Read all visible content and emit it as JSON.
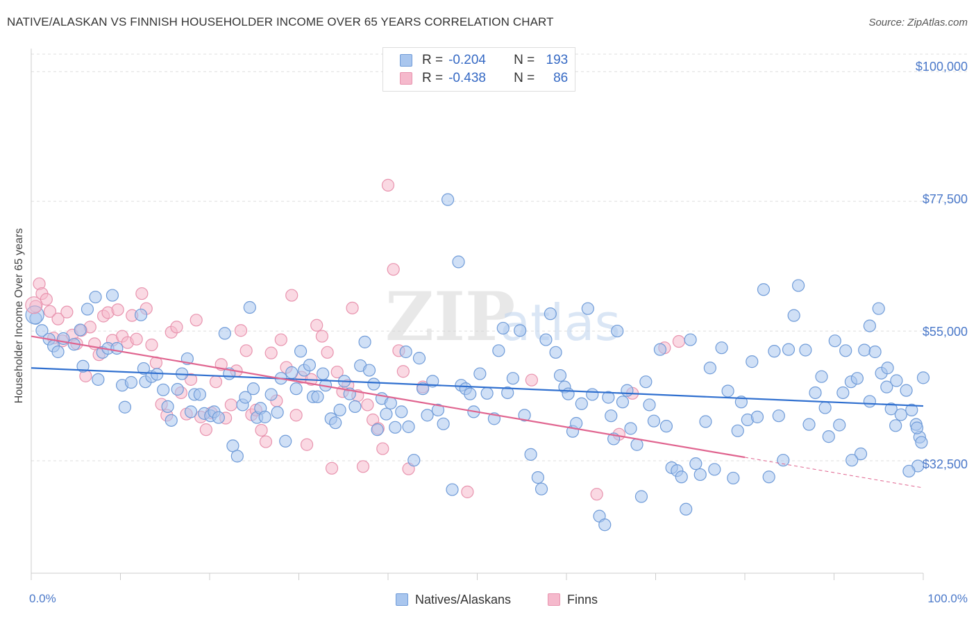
{
  "title": "NATIVE/ALASKAN VS FINNISH HOUSEHOLDER INCOME OVER 65 YEARS CORRELATION CHART",
  "source": "Source: ZipAtlas.com",
  "watermark": {
    "zip": "ZIP",
    "atlas": "atlas"
  },
  "colors": {
    "natives_fill": "#a9c6ee",
    "natives_stroke": "#6f9bd8",
    "natives_line": "#2f6fcf",
    "finns_fill": "#f5b9cc",
    "finns_stroke": "#e893ae",
    "finns_line": "#e0648f",
    "tick_text": "#4a78c9",
    "grid": "#dddddd"
  },
  "legend": {
    "rows": [
      {
        "r_label": "R =",
        "r_value": "-0.204",
        "n_label": "N =",
        "n_value": "193"
      },
      {
        "r_label": "R =",
        "r_value": "-0.438",
        "n_label": "N =",
        "n_value": "86"
      }
    ]
  },
  "bottom_legend": {
    "natives": "Natives/Alaskans",
    "finns": "Finns"
  },
  "chart_data": {
    "type": "scatter",
    "title": "NATIVE/ALASKAN VS FINNISH HOUSEHOLDER INCOME OVER 65 YEARS CORRELATION CHART",
    "xlabel": "",
    "ylabel": "Householder Income Over 65 years",
    "xlim": [
      0,
      100
    ],
    "ylim": [
      13000,
      104000
    ],
    "x_tick_labels": [
      "0.0%",
      "100.0%"
    ],
    "y_ticks": [
      32500,
      55000,
      77500,
      100000
    ],
    "y_tick_labels": [
      "$32,500",
      "$55,000",
      "$77,500",
      "$100,000"
    ],
    "legend_position": "top-center",
    "grid": true,
    "series": [
      {
        "name": "Natives/Alaskans",
        "r": -0.204,
        "n": 193,
        "trend": {
          "x": [
            0,
            100
          ],
          "y": [
            48600,
            42000
          ]
        },
        "points": [
          [
            0.5,
            57200
          ],
          [
            1.2,
            55100
          ],
          [
            2.0,
            53600
          ],
          [
            2.5,
            52400
          ],
          [
            3.0,
            51400
          ],
          [
            3.6,
            53700
          ],
          [
            4.8,
            52700
          ],
          [
            5.5,
            55200
          ],
          [
            5.8,
            48900
          ],
          [
            6.3,
            58800
          ],
          [
            7.2,
            60900
          ],
          [
            7.5,
            46600
          ],
          [
            8.0,
            51300
          ],
          [
            8.6,
            52000
          ],
          [
            9.1,
            61200
          ],
          [
            9.6,
            52000
          ],
          [
            10.2,
            45600
          ],
          [
            10.5,
            41800
          ],
          [
            11.2,
            46100
          ],
          [
            12.3,
            57800
          ],
          [
            12.6,
            48500
          ],
          [
            12.8,
            46200
          ],
          [
            13.5,
            47100
          ],
          [
            14.1,
            47500
          ],
          [
            14.8,
            44800
          ],
          [
            15.3,
            41900
          ],
          [
            15.7,
            39500
          ],
          [
            16.4,
            44900
          ],
          [
            16.9,
            47600
          ],
          [
            17.5,
            50200
          ],
          [
            17.9,
            41000
          ],
          [
            18.3,
            44000
          ],
          [
            18.9,
            44000
          ],
          [
            19.4,
            40700
          ],
          [
            20.1,
            40300
          ],
          [
            20.5,
            41000
          ],
          [
            21.0,
            40000
          ],
          [
            21.7,
            54600
          ],
          [
            22.2,
            47600
          ],
          [
            22.6,
            35100
          ],
          [
            23.1,
            33300
          ],
          [
            23.7,
            42200
          ],
          [
            24.0,
            43500
          ],
          [
            24.5,
            59100
          ],
          [
            24.9,
            45000
          ],
          [
            25.3,
            40000
          ],
          [
            25.7,
            41600
          ],
          [
            26.2,
            40100
          ],
          [
            26.9,
            44000
          ],
          [
            27.6,
            40900
          ],
          [
            28.0,
            46800
          ],
          [
            28.5,
            35900
          ],
          [
            29.2,
            47800
          ],
          [
            29.7,
            45000
          ],
          [
            30.2,
            51500
          ],
          [
            30.6,
            48200
          ],
          [
            31.2,
            49100
          ],
          [
            31.6,
            43600
          ],
          [
            32.1,
            43600
          ],
          [
            32.7,
            47600
          ],
          [
            33.0,
            45600
          ],
          [
            33.6,
            39800
          ],
          [
            34.1,
            39100
          ],
          [
            34.6,
            41300
          ],
          [
            35.1,
            46300
          ],
          [
            35.7,
            44100
          ],
          [
            36.3,
            41900
          ],
          [
            36.9,
            49000
          ],
          [
            37.4,
            53100
          ],
          [
            37.9,
            48200
          ],
          [
            38.4,
            45800
          ],
          [
            38.8,
            37900
          ],
          [
            39.3,
            43300
          ],
          [
            39.8,
            40600
          ],
          [
            40.3,
            42500
          ],
          [
            40.8,
            38300
          ],
          [
            41.5,
            41000
          ],
          [
            42.0,
            51400
          ],
          [
            42.3,
            38400
          ],
          [
            42.9,
            32600
          ],
          [
            43.5,
            50300
          ],
          [
            43.9,
            45000
          ],
          [
            44.4,
            40400
          ],
          [
            45.0,
            46300
          ],
          [
            45.6,
            41300
          ],
          [
            46.2,
            38900
          ],
          [
            46.7,
            77800
          ],
          [
            47.2,
            27500
          ],
          [
            47.9,
            67000
          ],
          [
            48.2,
            45600
          ],
          [
            48.7,
            45000
          ],
          [
            49.2,
            44100
          ],
          [
            49.6,
            41000
          ],
          [
            50.3,
            47600
          ],
          [
            51.1,
            44200
          ],
          [
            51.9,
            39800
          ],
          [
            52.4,
            51600
          ],
          [
            52.9,
            55500
          ],
          [
            53.4,
            44300
          ],
          [
            54.0,
            46800
          ],
          [
            54.8,
            55100
          ],
          [
            55.3,
            40400
          ],
          [
            56.0,
            33600
          ],
          [
            56.8,
            29600
          ],
          [
            57.2,
            27600
          ],
          [
            57.7,
            53500
          ],
          [
            58.2,
            58000
          ],
          [
            58.8,
            51300
          ],
          [
            59.3,
            47300
          ],
          [
            59.8,
            45300
          ],
          [
            60.2,
            44100
          ],
          [
            60.7,
            37600
          ],
          [
            61.1,
            39000
          ],
          [
            61.7,
            42400
          ],
          [
            62.4,
            58900
          ],
          [
            62.9,
            44000
          ],
          [
            63.7,
            22900
          ],
          [
            64.3,
            21400
          ],
          [
            64.7,
            43500
          ],
          [
            65.0,
            40300
          ],
          [
            65.3,
            36300
          ],
          [
            65.7,
            55000
          ],
          [
            66.3,
            42700
          ],
          [
            66.8,
            44700
          ],
          [
            67.2,
            38100
          ],
          [
            67.9,
            35300
          ],
          [
            68.4,
            26300
          ],
          [
            68.9,
            46200
          ],
          [
            69.3,
            42200
          ],
          [
            69.8,
            39400
          ],
          [
            70.5,
            51800
          ],
          [
            71.2,
            38500
          ],
          [
            71.8,
            31300
          ],
          [
            72.4,
            30800
          ],
          [
            72.9,
            29700
          ],
          [
            73.4,
            24100
          ],
          [
            73.9,
            53500
          ],
          [
            74.5,
            32000
          ],
          [
            75.0,
            30100
          ],
          [
            75.6,
            39300
          ],
          [
            76.1,
            48600
          ],
          [
            76.6,
            31000
          ],
          [
            77.4,
            52100
          ],
          [
            78.1,
            44600
          ],
          [
            78.7,
            29500
          ],
          [
            79.2,
            37700
          ],
          [
            79.6,
            42700
          ],
          [
            80.3,
            39600
          ],
          [
            80.8,
            49700
          ],
          [
            81.4,
            40100
          ],
          [
            82.1,
            62200
          ],
          [
            82.7,
            29700
          ],
          [
            83.3,
            51500
          ],
          [
            83.8,
            40300
          ],
          [
            84.3,
            32600
          ],
          [
            84.9,
            51800
          ],
          [
            85.5,
            57700
          ],
          [
            86.0,
            62900
          ],
          [
            86.8,
            51700
          ],
          [
            87.2,
            38800
          ],
          [
            87.9,
            44300
          ],
          [
            88.6,
            47100
          ],
          [
            89.0,
            41700
          ],
          [
            89.4,
            36700
          ],
          [
            90.1,
            53300
          ],
          [
            90.6,
            38700
          ],
          [
            91.3,
            51600
          ],
          [
            91.9,
            46200
          ],
          [
            92.6,
            46800
          ],
          [
            93.4,
            51700
          ],
          [
            94.0,
            55900
          ],
          [
            94.6,
            51400
          ],
          [
            95.3,
            47700
          ],
          [
            95.9,
            45300
          ],
          [
            96.4,
            41500
          ],
          [
            96.9,
            38600
          ],
          [
            97.5,
            40500
          ],
          [
            98.1,
            44700
          ],
          [
            98.7,
            41300
          ],
          [
            99.2,
            38800
          ],
          [
            99.4,
            31600
          ],
          [
            99.6,
            36600
          ],
          [
            99.8,
            35700
          ],
          [
            100.0,
            46900
          ],
          [
            99.3,
            38200
          ],
          [
            98.4,
            30700
          ],
          [
            97.0,
            46400
          ],
          [
            96.0,
            48600
          ],
          [
            95.0,
            58900
          ],
          [
            94.0,
            42800
          ],
          [
            93.0,
            33700
          ],
          [
            92.0,
            32600
          ],
          [
            91.0,
            44300
          ]
        ]
      },
      {
        "name": "Finns",
        "r": -0.438,
        "n": 86,
        "trend": {
          "x": [
            0,
            80
          ],
          "y": [
            54100,
            33100
          ]
        },
        "trend_dashed": {
          "x": [
            80,
            100
          ],
          "y": [
            33100,
            27800
          ]
        },
        "points": [
          [
            0.5,
            59300
          ],
          [
            0.9,
            63200
          ],
          [
            1.2,
            61500
          ],
          [
            1.7,
            60500
          ],
          [
            2.1,
            58400
          ],
          [
            2.5,
            53800
          ],
          [
            3.0,
            57100
          ],
          [
            3.5,
            53300
          ],
          [
            4.0,
            58300
          ],
          [
            4.6,
            54300
          ],
          [
            5.1,
            52800
          ],
          [
            5.6,
            55100
          ],
          [
            6.1,
            47200
          ],
          [
            6.6,
            55700
          ],
          [
            7.1,
            52800
          ],
          [
            7.6,
            50900
          ],
          [
            8.1,
            57600
          ],
          [
            8.6,
            58200
          ],
          [
            9.1,
            53400
          ],
          [
            9.7,
            58700
          ],
          [
            10.2,
            54100
          ],
          [
            10.8,
            53000
          ],
          [
            11.3,
            57700
          ],
          [
            11.8,
            53600
          ],
          [
            12.4,
            61500
          ],
          [
            12.9,
            58900
          ],
          [
            13.5,
            52600
          ],
          [
            14.0,
            49500
          ],
          [
            14.6,
            42300
          ],
          [
            15.2,
            40400
          ],
          [
            15.7,
            54800
          ],
          [
            16.3,
            55700
          ],
          [
            16.8,
            44300
          ],
          [
            17.4,
            40600
          ],
          [
            17.9,
            46600
          ],
          [
            18.5,
            56900
          ],
          [
            19.0,
            40100
          ],
          [
            19.6,
            37900
          ],
          [
            20.2,
            40800
          ],
          [
            20.7,
            46200
          ],
          [
            21.3,
            49200
          ],
          [
            21.8,
            39900
          ],
          [
            22.4,
            42200
          ],
          [
            23.0,
            48100
          ],
          [
            23.5,
            55100
          ],
          [
            24.1,
            51600
          ],
          [
            24.7,
            40500
          ],
          [
            25.2,
            41300
          ],
          [
            25.8,
            37800
          ],
          [
            26.3,
            35800
          ],
          [
            26.9,
            51200
          ],
          [
            27.5,
            42900
          ],
          [
            28.0,
            53500
          ],
          [
            28.6,
            48700
          ],
          [
            29.2,
            61200
          ],
          [
            29.7,
            40400
          ],
          [
            30.3,
            47000
          ],
          [
            30.9,
            35300
          ],
          [
            31.4,
            46600
          ],
          [
            32.0,
            56000
          ],
          [
            32.6,
            54100
          ],
          [
            33.2,
            51300
          ],
          [
            33.7,
            31200
          ],
          [
            34.3,
            47900
          ],
          [
            34.9,
            44500
          ],
          [
            35.5,
            45600
          ],
          [
            36.0,
            59000
          ],
          [
            36.6,
            43800
          ],
          [
            37.2,
            31500
          ],
          [
            37.7,
            42200
          ],
          [
            38.3,
            39600
          ],
          [
            38.9,
            38100
          ],
          [
            39.4,
            34600
          ],
          [
            40.0,
            80300
          ],
          [
            40.6,
            65700
          ],
          [
            41.2,
            51600
          ],
          [
            41.7,
            48000
          ],
          [
            42.3,
            31100
          ],
          [
            43.9,
            45300
          ],
          [
            48.9,
            27100
          ],
          [
            56.1,
            46500
          ],
          [
            63.4,
            26700
          ],
          [
            65.9,
            37100
          ],
          [
            67.4,
            44200
          ],
          [
            71.0,
            52100
          ],
          [
            72.6,
            53200
          ]
        ]
      }
    ]
  }
}
